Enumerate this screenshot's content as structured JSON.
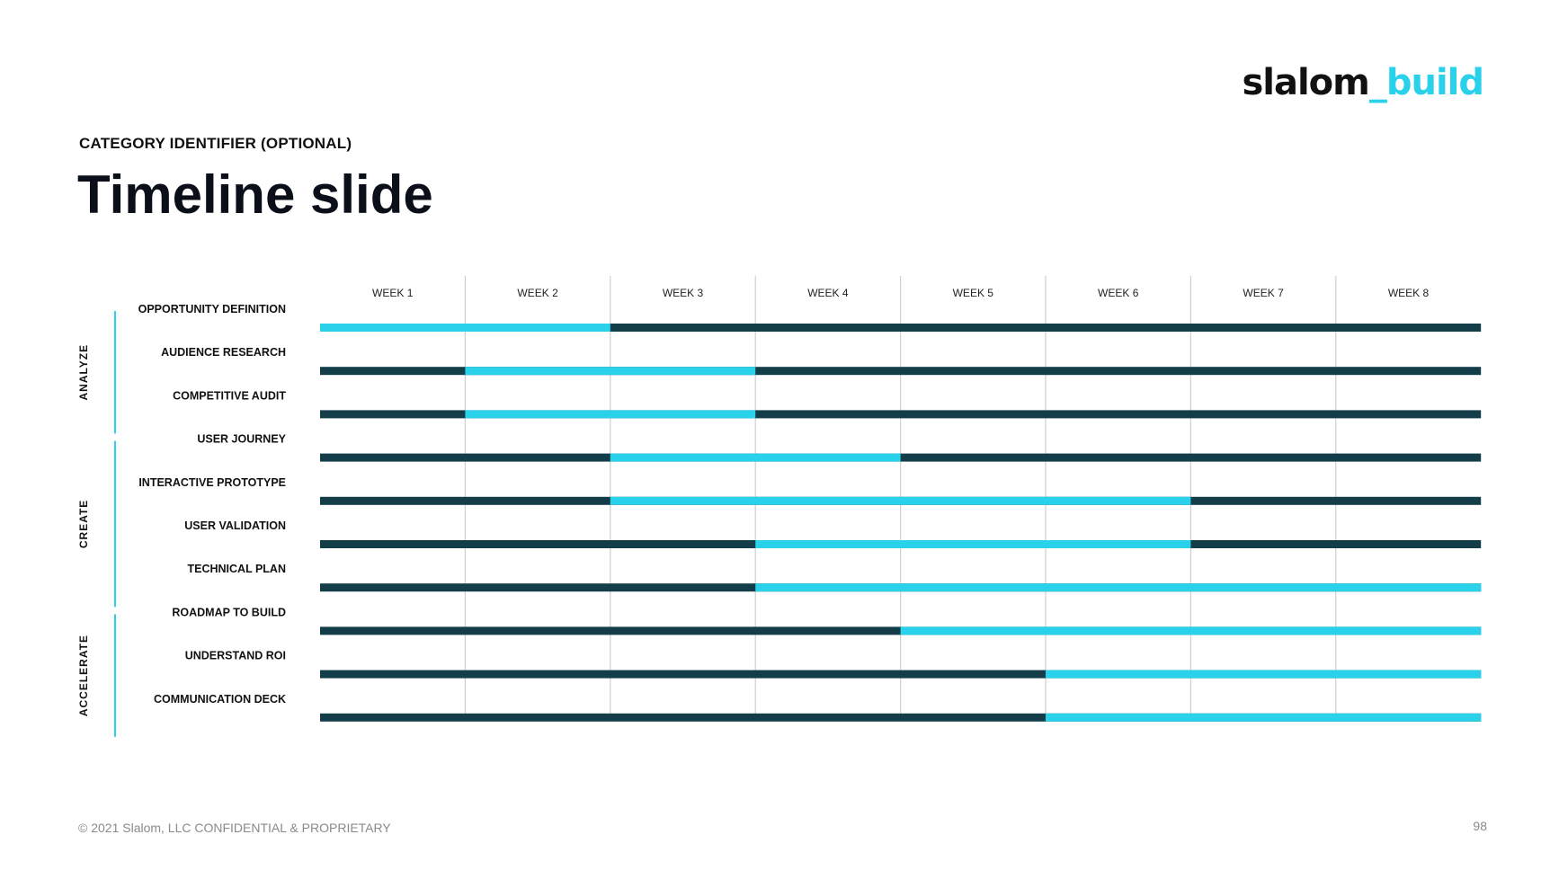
{
  "header": {
    "logo_left": "slalom",
    "logo_right": "_build",
    "category": "CATEGORY IDENTIFIER (OPTIONAL)",
    "title": "Timeline slide"
  },
  "footer": {
    "copyright": "© 2021 Slalom, LLC CONFIDENTIAL & PROPRIETARY",
    "page_number": "98"
  },
  "colors": {
    "active": "#2ad1ea",
    "inactive": "#143d4a",
    "grid": "#cfcfcf",
    "group_rule": "#2ad1ea"
  },
  "chart_data": {
    "type": "gantt",
    "weeks": [
      "WEEK 1",
      "WEEK 2",
      "WEEK 3",
      "WEEK 4",
      "WEEK 5",
      "WEEK 6",
      "WEEK 7",
      "WEEK 8"
    ],
    "groups": [
      {
        "name": "ANALYZE",
        "first_task": 0,
        "last_task": 2
      },
      {
        "name": "CREATE",
        "first_task": 3,
        "last_task": 6
      },
      {
        "name": "ACCELERATE",
        "first_task": 7,
        "last_task": 9
      }
    ],
    "tasks": [
      {
        "name": "OPPORTUNITY DEFINITION",
        "start_week": 1,
        "end_week": 2
      },
      {
        "name": "AUDIENCE RESEARCH",
        "start_week": 2,
        "end_week": 3
      },
      {
        "name": "COMPETITIVE AUDIT",
        "start_week": 2,
        "end_week": 3
      },
      {
        "name": "USER JOURNEY",
        "start_week": 3,
        "end_week": 4
      },
      {
        "name": "INTERACTIVE PROTOTYPE",
        "start_week": 3,
        "end_week": 6
      },
      {
        "name": "USER VALIDATION",
        "start_week": 4,
        "end_week": 6
      },
      {
        "name": "TECHNICAL PLAN",
        "start_week": 4,
        "end_week": 8
      },
      {
        "name": "ROADMAP TO BUILD",
        "start_week": 5,
        "end_week": 8
      },
      {
        "name": "UNDERSTAND ROI",
        "start_week": 6,
        "end_week": 8
      },
      {
        "name": "COMMUNICATION DECK",
        "start_week": 6,
        "end_week": 8
      }
    ]
  }
}
